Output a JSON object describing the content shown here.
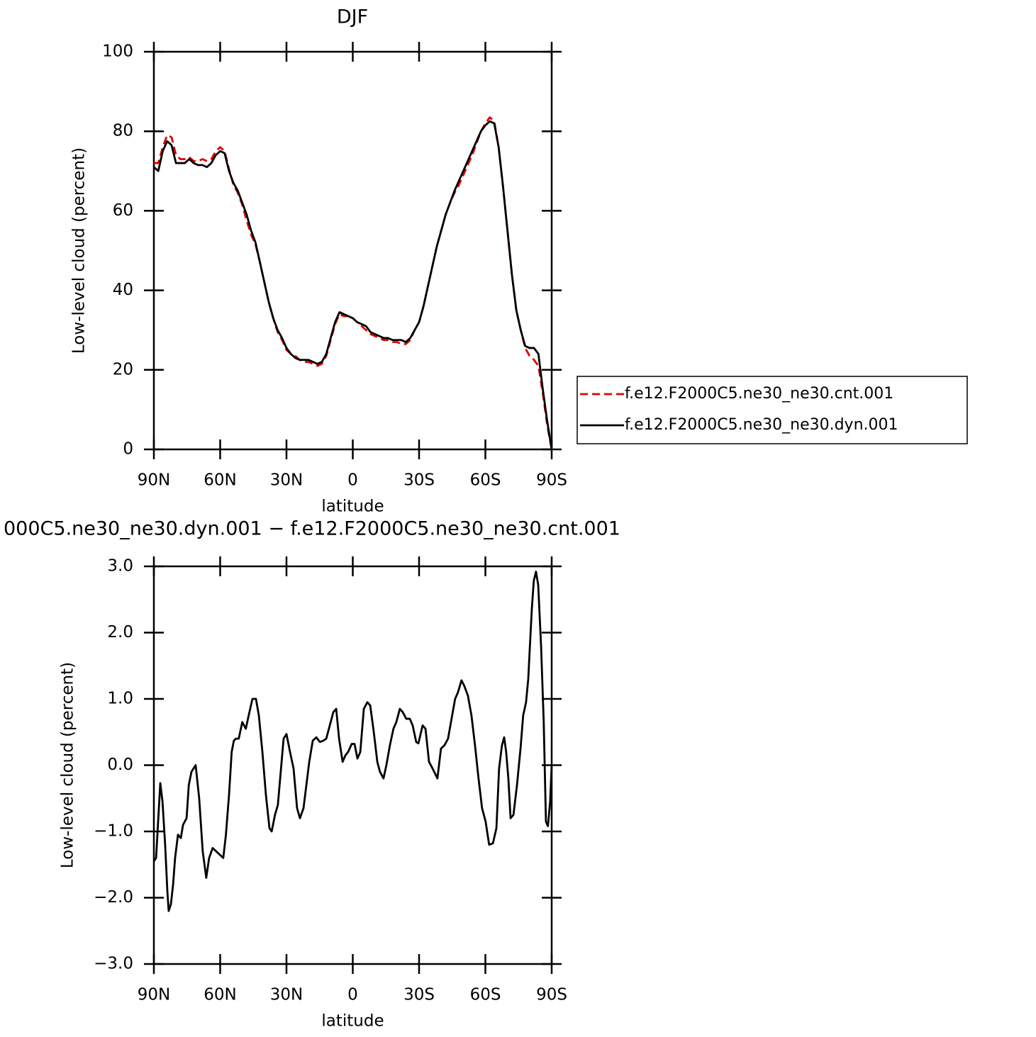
{
  "chart_data": [
    {
      "type": "line",
      "title": "DJF",
      "xlabel": "latitude",
      "ylabel": "Low-level cloud (percent)",
      "x": [
        90,
        88,
        86,
        84,
        82,
        80,
        78,
        76,
        74,
        72,
        70,
        68,
        66,
        64,
        62,
        60,
        58,
        56,
        54,
        52,
        50,
        48,
        46,
        44,
        42,
        40,
        38,
        36,
        34,
        32,
        30,
        28,
        26,
        24,
        22,
        20,
        18,
        16,
        14,
        12,
        10,
        8,
        6,
        4,
        2,
        0,
        -2,
        -4,
        -6,
        -8,
        -10,
        -12,
        -14,
        -16,
        -18,
        -20,
        -22,
        -24,
        -26,
        -28,
        -30,
        -32,
        -34,
        -36,
        -38,
        -40,
        -42,
        -44,
        -46,
        -48,
        -50,
        -52,
        -54,
        -56,
        -58,
        -60,
        -62,
        -64,
        -66,
        -68,
        -70,
        -72,
        -74,
        -76,
        -78,
        -80,
        -82,
        -84,
        -86,
        -88,
        -90
      ],
      "series": [
        {
          "name": "f.e12.F2000C5.ne30_ne30.cnt.001",
          "color": "#e00000",
          "dash": true,
          "values": [
            72,
            72,
            76,
            79,
            78.5,
            74,
            73,
            73,
            73.5,
            72.5,
            72.5,
            73,
            72.5,
            73,
            75,
            76,
            75,
            70.5,
            66.5,
            64.5,
            61.5,
            57.5,
            54,
            51.5,
            47,
            42,
            37,
            33,
            29.5,
            27.5,
            25,
            24,
            23.5,
            22.5,
            22,
            22,
            21.5,
            21,
            21.5,
            23.5,
            27.5,
            31.5,
            34,
            33.5,
            33.5,
            33,
            32,
            31,
            30,
            29,
            28.5,
            28,
            27.5,
            27.5,
            27,
            27,
            26.5,
            26.5,
            27.5,
            30,
            32,
            36,
            41,
            46,
            51,
            55,
            59,
            62,
            64.5,
            66.5,
            69,
            71.5,
            74,
            77,
            80,
            82,
            83.5,
            82.5,
            76,
            66,
            55,
            44,
            35,
            30,
            25.5,
            23.5,
            22.5,
            21,
            14,
            6,
            0
          ]
        },
        {
          "name": "f.e12.F2000C5.ne30_ne30.dyn.001",
          "color": "#000000",
          "dash": false,
          "values": [
            71,
            70,
            75,
            77.5,
            76.5,
            72,
            72,
            72,
            73,
            72,
            71.5,
            71.5,
            71,
            72,
            74,
            75,
            74.5,
            70,
            67,
            65,
            62,
            59,
            55,
            52,
            47,
            42,
            37,
            33,
            30,
            28,
            25.5,
            24,
            23,
            22.5,
            22.5,
            22.5,
            22,
            21.5,
            22,
            24,
            28,
            32,
            34.5,
            34,
            33.5,
            33,
            32,
            31.5,
            31,
            29.5,
            29,
            28.5,
            28,
            28,
            27.5,
            27.5,
            27.5,
            27,
            28,
            30,
            32,
            36,
            41,
            46,
            51,
            55,
            59,
            62,
            65,
            67.5,
            70,
            72.5,
            75,
            77.5,
            80,
            81.5,
            82.5,
            82,
            76,
            66,
            55,
            44,
            35,
            30,
            26,
            25.5,
            25.5,
            24,
            15,
            7,
            0
          ]
        }
      ],
      "xlim": [
        90,
        -90
      ],
      "xticks": [
        {
          "value": 90,
          "label": "90N"
        },
        {
          "value": 60,
          "label": "60N"
        },
        {
          "value": 30,
          "label": "30N"
        },
        0,
        {
          "value": -30,
          "label": "30S"
        },
        {
          "value": -60,
          "label": "60S"
        },
        {
          "value": -90,
          "label": "90S"
        }
      ],
      "ylim": [
        0,
        100
      ],
      "yticks": [
        0,
        20,
        40,
        60,
        80,
        100
      ],
      "legend": "right"
    },
    {
      "type": "line",
      "title": "000C5.ne30_ne30.dyn.001 − f.e12.F2000C5.ne30_ne30.cnt.001",
      "xlabel": "latitude",
      "ylabel": "Low-level cloud (percent)",
      "x": [
        90,
        89.0,
        87.1,
        86.1,
        84.9,
        83.9,
        83.3,
        82.3,
        81.3,
        80.4,
        79.1,
        77.8,
        76.8,
        75.2,
        74.2,
        73.0,
        71.1,
        69.5,
        67.9,
        66.3,
        65.0,
        63.4,
        61.8,
        60.2,
        58.6,
        57.4,
        56.0,
        54.8,
        53.8,
        52.9,
        51.6,
        50.0,
        48.4,
        47.1,
        45.4,
        43.8,
        42.5,
        40.9,
        39.3,
        37.7,
        36.7,
        35.2,
        33.9,
        32.6,
        31.3,
        30.0,
        28.4,
        26.8,
        25.2,
        23.9,
        22.3,
        21.0,
        19.7,
        18.1,
        16.5,
        14.9,
        13.3,
        12.0,
        10.4,
        8.8,
        7.5,
        6.2,
        4.6,
        3.3,
        2.1,
        0.5,
        -0.8,
        -2.1,
        -3.4,
        -5.0,
        -6.6,
        -7.9,
        -9.5,
        -11.1,
        -12.3,
        -13.9,
        -15.2,
        -16.8,
        -18.4,
        -19.7,
        -21.3,
        -22.6,
        -24.2,
        -25.8,
        -27.1,
        -28.7,
        -29.7,
        -31.6,
        -32.9,
        -34.5,
        -36.1,
        -38.3,
        -39.9,
        -41.5,
        -43.1,
        -44.7,
        -46.3,
        -47.6,
        -49.2,
        -50.4,
        -52.1,
        -53.7,
        -55.3,
        -56.9,
        -58.5,
        -60.1,
        -61.7,
        -63.4,
        -65.0,
        -66.2,
        -67.5,
        -68.5,
        -69.4,
        -70.4,
        -71.4,
        -72.7,
        -74.3,
        -75.9,
        -77.1,
        -78.4,
        -79.4,
        -80.0,
        -81.0,
        -81.9,
        -82.9,
        -83.9,
        -85.2,
        -86.4,
        -87.4,
        -88.3,
        -89.3,
        -90
      ],
      "series": [
        {
          "color": "#000000",
          "dash": false,
          "values": [
            -1.45,
            -1.4,
            -0.27,
            -0.55,
            -1.2,
            -1.9,
            -2.2,
            -2.1,
            -1.8,
            -1.4,
            -1.05,
            -1.1,
            -0.9,
            -0.8,
            -0.3,
            -0.1,
            0,
            -0.5,
            -1.3,
            -1.7,
            -1.4,
            -1.25,
            -1.3,
            -1.35,
            -1.4,
            -1.05,
            -0.45,
            0.2,
            0.37,
            0.4,
            0.4,
            0.65,
            0.55,
            0.75,
            1.0,
            1.0,
            0.75,
            0.2,
            -0.45,
            -0.95,
            -1.0,
            -0.75,
            -0.6,
            -0.1,
            0.4,
            0.47,
            0.2,
            -0.05,
            -0.65,
            -0.8,
            -0.65,
            -0.3,
            0.05,
            0.37,
            0.42,
            0.35,
            0.37,
            0.4,
            0.6,
            0.8,
            0.85,
            0.4,
            0.05,
            0.15,
            0.2,
            0.32,
            0.32,
            0.1,
            0.2,
            0.85,
            0.95,
            0.9,
            0.5,
            0.05,
            -0.1,
            -0.2,
            0,
            0.3,
            0.55,
            0.65,
            0.85,
            0.8,
            0.7,
            0.7,
            0.6,
            0.35,
            0.33,
            0.6,
            0.55,
            0.05,
            -0.05,
            -0.2,
            0.25,
            0.3,
            0.4,
            0.7,
            1.0,
            1.1,
            1.28,
            1.2,
            1.05,
            0.75,
            0.3,
            -0.2,
            -0.65,
            -0.85,
            -1.2,
            -1.18,
            -0.95,
            -0.05,
            0.3,
            0.42,
            0.2,
            -0.2,
            -0.8,
            -0.75,
            -0.3,
            0.25,
            0.75,
            0.95,
            1.3,
            1.7,
            2.35,
            2.78,
            2.92,
            2.72,
            1.8,
            0.65,
            -0.85,
            -0.92,
            -0.55,
            0
          ]
        }
      ],
      "xlim": [
        90,
        -90
      ],
      "xticks": [
        {
          "value": 90,
          "label": "90N"
        },
        {
          "value": 60,
          "label": "60N"
        },
        {
          "value": 30,
          "label": "30N"
        },
        0,
        {
          "value": -30,
          "label": "30S"
        },
        {
          "value": -60,
          "label": "60S"
        },
        {
          "value": -90,
          "label": "90S"
        }
      ],
      "ylim": [
        -3,
        3
      ],
      "yticks": [
        {
          "value": -3,
          "label": "−3.0"
        },
        {
          "value": -2,
          "label": "−2.0"
        },
        {
          "value": -1,
          "label": "−1.0"
        },
        {
          "value": 0,
          "label": "0.0"
        },
        {
          "value": 1,
          "label": "1.0"
        },
        {
          "value": 2,
          "label": "2.0"
        },
        {
          "value": 3,
          "label": "3.0"
        }
      ]
    }
  ]
}
